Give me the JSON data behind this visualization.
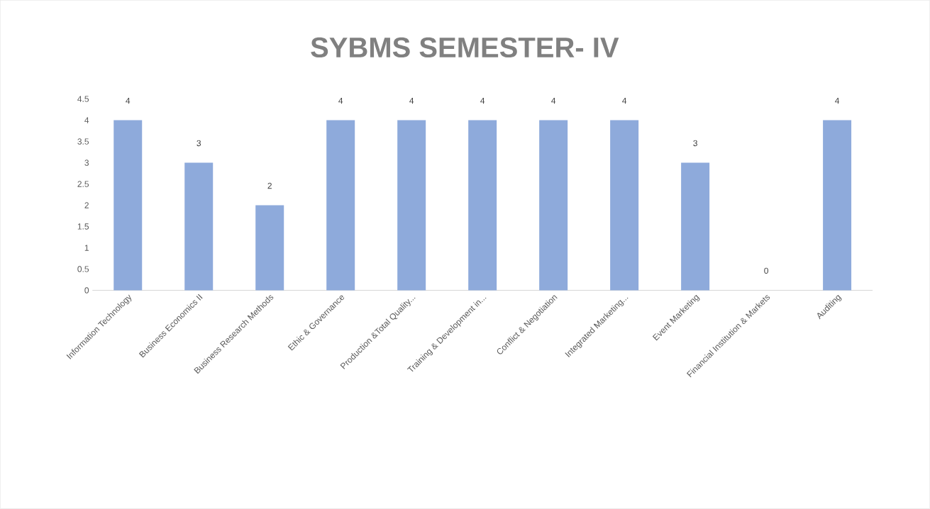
{
  "chart_data": {
    "type": "bar",
    "title": "SYBMS SEMESTER-  IV",
    "categories": [
      "Information Technology",
      "Business Economics II",
      "Business Research Methods",
      "Ethic & Governance",
      "Production &Total Quality...",
      "Training & Development in...",
      "Conflict & Negotiation",
      "Integrated Marketing...",
      "Event Marketing",
      "Financial Institution & Markets",
      "Auditing"
    ],
    "values": [
      4,
      3,
      2,
      4,
      4,
      4,
      4,
      4,
      3,
      0,
      4
    ],
    "color": "#8eaadb",
    "ylim": [
      0,
      4.5
    ],
    "yticks": [
      0,
      0.5,
      1,
      1.5,
      2,
      2.5,
      3,
      3.5,
      4,
      4.5
    ],
    "data_labels": true
  }
}
